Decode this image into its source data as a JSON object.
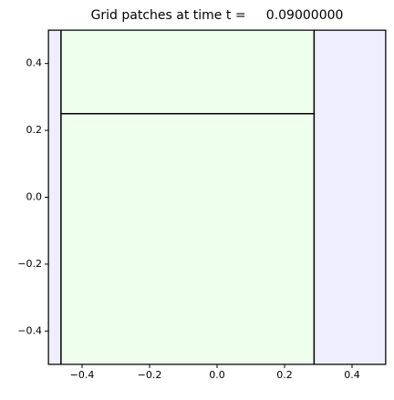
{
  "chart_data": {
    "type": "patches",
    "title": "Grid patches at time t =     0.09000000",
    "xlim": [
      -0.5,
      0.5
    ],
    "ylim": [
      -0.5,
      0.5
    ],
    "xticks": [
      {
        "value": -0.4,
        "label": "−0.4"
      },
      {
        "value": -0.2,
        "label": "−0.2"
      },
      {
        "value": 0,
        "label": "0.0"
      },
      0.2,
      0.4
    ],
    "yticks": [
      {
        "value": -0.4,
        "label": "−0.4"
      },
      {
        "value": -0.2,
        "label": "−0.2"
      },
      {
        "value": 0,
        "label": "0.0"
      },
      0.2,
      0.4
    ],
    "edge_color": "#000000",
    "patches": [
      {
        "x": [
          -0.5,
          0.5
        ],
        "y": [
          -0.5,
          0.5
        ],
        "color": "#eeeeff"
      },
      {
        "x": [
          -0.4625,
          0.2875
        ],
        "y": [
          -0.5,
          0.25
        ],
        "color": "#eeffee"
      },
      {
        "x": [
          -0.4625,
          0.2875
        ],
        "y": [
          0.25,
          0.5
        ],
        "color": "#eeffee"
      }
    ]
  }
}
